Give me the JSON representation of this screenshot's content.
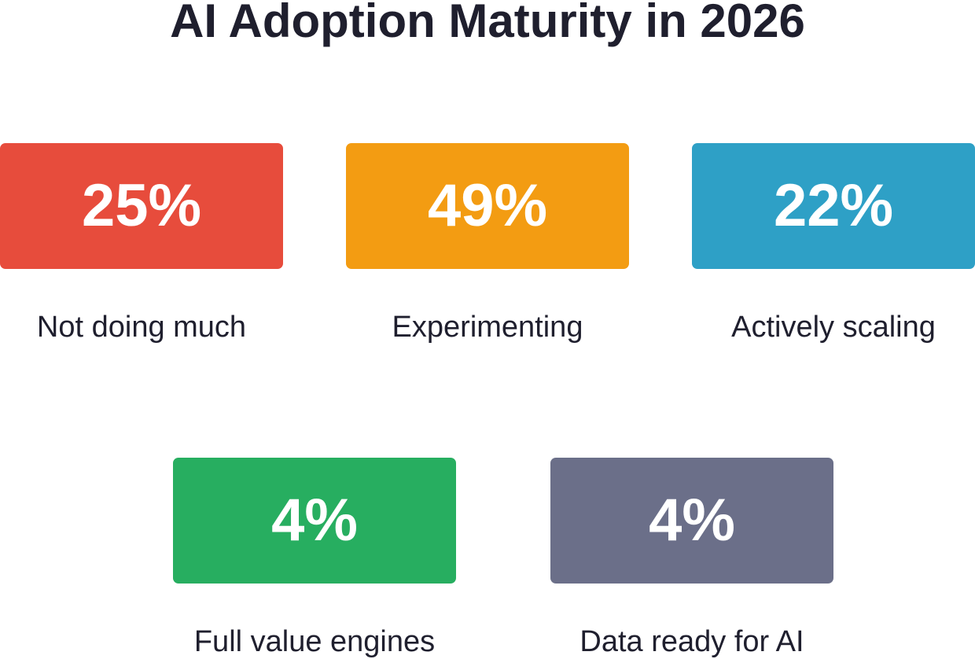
{
  "title": "AI Adoption Maturity in 2026",
  "chart_data": {
    "type": "stat-cards",
    "title": "AI Adoption Maturity in 2026",
    "unit": "%",
    "items": [
      {
        "label": "Not doing much",
        "value": 25,
        "display": "25%",
        "color": "#e74c3c"
      },
      {
        "label": "Experimenting",
        "value": 49,
        "display": "49%",
        "color": "#f39c12"
      },
      {
        "label": "Actively scaling",
        "value": 22,
        "display": "22%",
        "color": "#2ea0c6"
      },
      {
        "label": "Full value engines",
        "value": 4,
        "display": "4%",
        "color": "#27ae60"
      },
      {
        "label": "Data ready for AI",
        "value": 4,
        "display": "4%",
        "color": "#6b6f89"
      }
    ]
  }
}
